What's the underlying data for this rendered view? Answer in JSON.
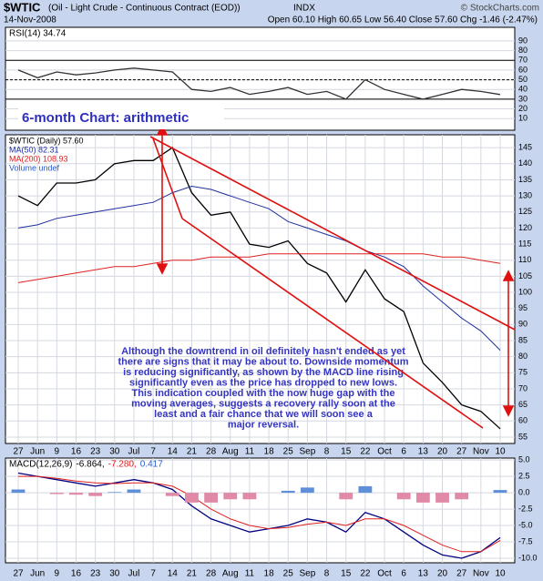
{
  "header": {
    "symbol": "$WTIC",
    "name": "(Oil - Light Crude - Continuous Contract (EOD))",
    "exchange": "INDX",
    "date": "14-Nov-2008",
    "quote": "Open 60.10  High 60.65  Low 56.40  Close 57.60  Chg -1.46 (-2.47%)",
    "credit": "© StockCharts.com"
  },
  "chart_data": [
    {
      "type": "line",
      "ylim": [
        -2,
        104
      ],
      "yticks": [
        10,
        20,
        30,
        40,
        50,
        60,
        70,
        80,
        90
      ],
      "ref_lines": [
        30,
        50,
        70
      ],
      "series": [
        {
          "name": "RSI(14) 34.74",
          "color": "#333333",
          "values": [
            60,
            52,
            58,
            55,
            57,
            60,
            62,
            60,
            58,
            40,
            38,
            42,
            35,
            38,
            42,
            35,
            38,
            30,
            50,
            40,
            35,
            30,
            35,
            40,
            38,
            34.74
          ]
        }
      ]
    },
    {
      "type": "line",
      "ylim": [
        53,
        149
      ],
      "yticks": [
        55,
        60,
        65,
        70,
        75,
        80,
        85,
        90,
        95,
        100,
        105,
        110,
        115,
        120,
        125,
        130,
        135,
        140,
        145
      ],
      "grid": true,
      "categories": [
        "27",
        "Jun",
        "9",
        "16",
        "23",
        "30",
        "Jul",
        "7",
        "14",
        "21",
        "28",
        "Aug",
        "11",
        "18",
        "25",
        "Sep",
        "8",
        "15",
        "22",
        "Oct",
        "6",
        "13",
        "20",
        "27",
        "Nov",
        "10"
      ],
      "series": [
        {
          "name": "$WTIC (Daily) 57.60",
          "color": "#000000",
          "values": [
            130,
            127,
            134,
            134,
            135,
            140,
            141,
            141,
            145,
            131,
            124,
            125,
            115,
            114,
            116,
            109,
            106,
            97,
            107,
            98,
            94,
            78,
            72,
            65,
            63,
            57.6
          ]
        },
        {
          "name": "MA(50) 82.31",
          "color": "#1f2f9f",
          "values": [
            120,
            121,
            123,
            124,
            125,
            126,
            127,
            128,
            131,
            133,
            132,
            130,
            128,
            126,
            122,
            120,
            118,
            116,
            113,
            111,
            108,
            102,
            97,
            92,
            88,
            82
          ]
        },
        {
          "name": "MA(200) 108.93",
          "color": "#e02020",
          "values": [
            103,
            104,
            105,
            106,
            107,
            108,
            108,
            109,
            110,
            110,
            111,
            111,
            111,
            112,
            112,
            112,
            112,
            112,
            112,
            112,
            112,
            112,
            111,
            111,
            110,
            109
          ]
        }
      ],
      "legend_note": "Volume undef",
      "title": "6-month Chart: arithmetic",
      "annotation": [
        "Although the downtrend in oil definitely hasn't ended as yet",
        "there are signs that it may be about to. Downside momentum",
        "is reducing significantly, as shown by the MACD line rising",
        "significantly even as the price has dropped to new lows.",
        "This indication coupled with the now huge gap with the",
        "moving averages, suggests a recovery rally soon at the",
        "least and a fair chance that we will soon see a",
        "major reversal."
      ]
    },
    {
      "type": "line",
      "ylim": [
        -10.7,
        5.3
      ],
      "yticks": [
        {
          "value": 5,
          "label": "5.0"
        },
        {
          "value": 2.5,
          "label": "2.5"
        },
        {
          "value": 0,
          "label": "0.0"
        },
        {
          "value": -2.5,
          "label": "-2.5"
        },
        {
          "value": -5,
          "label": "-5.0"
        },
        {
          "value": -7.5,
          "label": "-7.5"
        },
        {
          "value": -10,
          "label": "-10.0"
        }
      ],
      "categories": [
        "27",
        "Jun",
        "9",
        "16",
        "23",
        "30",
        "Jul",
        "7",
        "14",
        "21",
        "28",
        "Aug",
        "11",
        "18",
        "25",
        "Sep",
        "8",
        "15",
        "22",
        "Oct",
        "6",
        "13",
        "20",
        "27",
        "Nov",
        "10"
      ],
      "legend": [
        "MACD(12,26,9)",
        "-6.864,",
        "-7.280,",
        "0.417"
      ],
      "bar_colors": {
        "positive": "#5f8fd8",
        "negative": "#e08aa8"
      },
      "series": [
        {
          "name": "MACD",
          "color": "#000080",
          "values": [
            3,
            2.5,
            2,
            1.5,
            1,
            1.5,
            2,
            1.5,
            0.5,
            -2,
            -4,
            -5,
            -6,
            -5.5,
            -5,
            -4,
            -4.5,
            -6,
            -3,
            -4,
            -6,
            -8,
            -9.5,
            -10,
            -9,
            -6.864
          ]
        },
        {
          "name": "Signal",
          "color": "#e02020",
          "values": [
            2.5,
            2.5,
            2.2,
            1.8,
            1.5,
            1.4,
            1.5,
            1.5,
            1,
            -0.5,
            -2.5,
            -4,
            -5,
            -5.5,
            -5.3,
            -4.8,
            -4.5,
            -5,
            -4,
            -4,
            -5,
            -6.5,
            -8,
            -9,
            -9,
            -7.28
          ]
        },
        {
          "name": "Histogram",
          "style": "histogram",
          "values": [
            0.5,
            0,
            -0.2,
            -0.3,
            -0.5,
            0.1,
            0.5,
            0,
            -0.5,
            -1.5,
            -1.5,
            -1,
            -1,
            0,
            0.3,
            0.8,
            0,
            -1,
            1,
            0,
            -1,
            -1.5,
            -1.5,
            -1,
            0,
            0.417
          ]
        }
      ]
    }
  ]
}
